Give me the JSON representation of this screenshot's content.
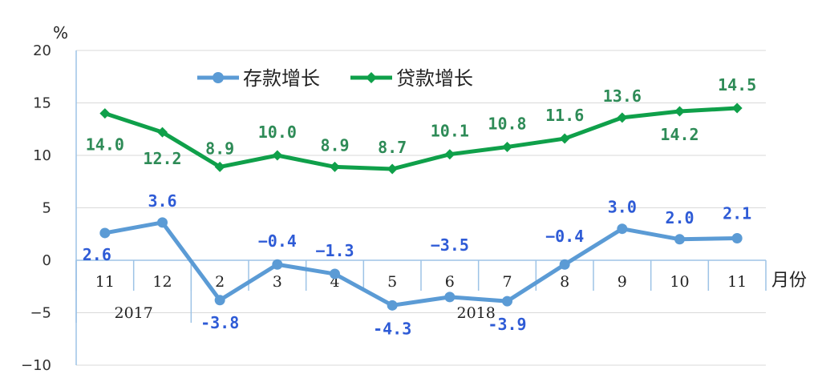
{
  "chart_data": {
    "type": "line",
    "unit": "%",
    "xlabel": "月份",
    "ylim": [
      -10,
      20
    ],
    "yticks": [
      -10,
      -5,
      0,
      5,
      10,
      15,
      20
    ],
    "categories": [
      "11",
      "12",
      "2",
      "3",
      "4",
      "5",
      "6",
      "7",
      "8",
      "9",
      "10",
      "11"
    ],
    "year_groups": [
      {
        "label": "2017",
        "start": 0,
        "end": 1
      },
      {
        "label": "2018",
        "start": 2,
        "end": 11
      }
    ],
    "legend_position": "top-center",
    "series": [
      {
        "name": "存款增长",
        "color": "#5B9BD5",
        "label_color": "#2E5BD6",
        "marker": "circle",
        "values": [
          2.6,
          3.6,
          -3.8,
          -0.4,
          -1.3,
          -4.3,
          -3.5,
          -3.9,
          -0.4,
          3.0,
          2.0,
          2.1
        ],
        "labels": [
          "2.6",
          "3.6",
          "-3.8",
          "−0.4",
          "−1.3",
          "-4.3",
          "−3.5",
          "-3.9",
          "−0.4",
          "3.0",
          "2.0",
          "2.1"
        ]
      },
      {
        "name": "贷款增长",
        "color": "#0FA04A",
        "label_color": "#2E8B57",
        "marker": "diamond",
        "values": [
          14.0,
          12.2,
          8.9,
          10.0,
          8.9,
          8.7,
          10.1,
          10.8,
          11.6,
          13.6,
          14.2,
          14.5
        ],
        "labels": [
          "14.0",
          "12.2",
          "8.9",
          "10.0",
          "8.9",
          "8.7",
          "10.1",
          "10.8",
          "11.6",
          "13.6",
          "14.2",
          "14.5"
        ]
      }
    ]
  }
}
